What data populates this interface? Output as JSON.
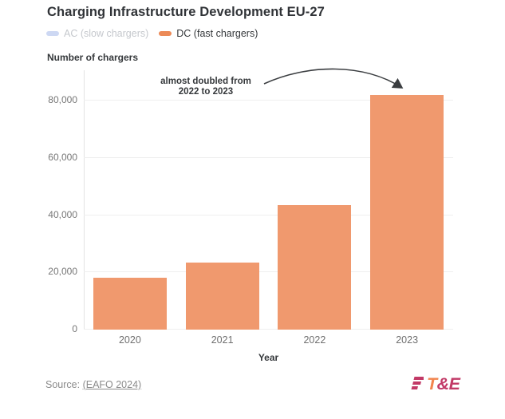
{
  "title": "Charging Infrastructure Development EU-27",
  "legend": {
    "items": [
      {
        "label": "AC (slow chargers)",
        "marker_color": "#CDD8F3",
        "text_color": "#C5C8CD",
        "active": false
      },
      {
        "label": "DC (fast chargers)",
        "marker_color": "#EC8A57",
        "text_color": "#35383B",
        "active": true
      }
    ]
  },
  "axis": {
    "y_title": "Number of chargers",
    "x_title": "Year"
  },
  "annotation": {
    "line1": "almost doubled from",
    "line2": "2022 to 2023"
  },
  "source": {
    "prefix": "Source: ",
    "link": "(EAFO 2024)"
  },
  "logo": {
    "text_t": "T",
    "text_amp_e": "&E",
    "magenta": "#C23A67",
    "orange": "#F2854E"
  },
  "colors": {
    "bar": "#F0996E",
    "grid": "#efefef",
    "axis_line": "#e3e3e3",
    "tick_text": "#767676",
    "dark_text": "#35383B",
    "source_text": "#8b8b8b",
    "background": "#ffffff"
  },
  "chart_data": {
    "type": "bar",
    "title": "Charging Infrastructure Development EU-27",
    "categories": [
      "2020",
      "2021",
      "2022",
      "2023"
    ],
    "series": [
      {
        "name": "AC (slow chargers)",
        "hidden": true,
        "values": null
      },
      {
        "name": "DC (fast chargers)",
        "hidden": false,
        "values": [
          18200,
          23400,
          43500,
          82000
        ]
      }
    ],
    "xlabel": "Year",
    "ylabel": "Number of chargers",
    "ylim": [
      0,
      90000
    ],
    "yticks": [
      0,
      20000,
      40000,
      60000,
      80000
    ],
    "ytick_labels": [
      "0",
      "20,000",
      "40,000",
      "60,000",
      "80,000"
    ],
    "grid": true,
    "legend_position": "top-left",
    "bar_color": "#F0996E",
    "annotation_text": "almost doubled from 2022 to 2023",
    "annotation_target": "2023"
  }
}
